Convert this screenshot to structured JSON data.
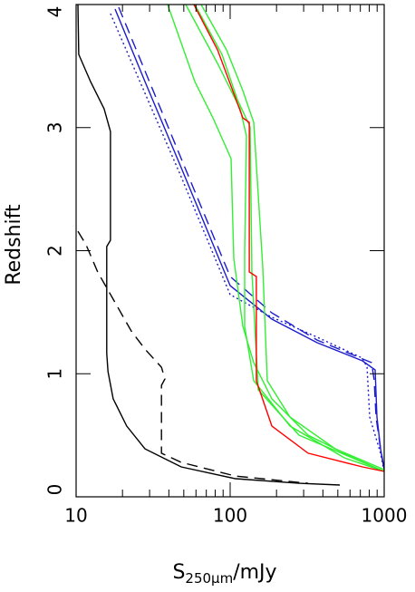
{
  "chart_data": {
    "type": "line",
    "xlabel": {
      "main": "S",
      "sub": "250μm",
      "rest": "/mJy"
    },
    "ylabel": "Redshift",
    "xlog": true,
    "xlim": [
      10,
      1000
    ],
    "ylim": [
      0,
      4
    ],
    "xticks": [
      10,
      100,
      1000
    ],
    "xminor": [
      20,
      30,
      40,
      50,
      60,
      70,
      80,
      90,
      200,
      300,
      400,
      500,
      600,
      700,
      800,
      900
    ],
    "yticks": [
      0,
      1,
      2,
      3,
      4
    ],
    "series": [
      {
        "color": "#000000",
        "dash": "solid",
        "x": [
          10.27,
          10.4,
          12.4,
          15.2,
          16.7,
          16.7,
          15.8,
          15.8,
          16.1,
          17.4,
          21.3,
          28.0,
          48.1,
          108,
          280,
          515
        ],
        "values": [
          4.0,
          3.595,
          3.374,
          3.153,
          2.969,
          2.085,
          2.033,
          1.164,
          1.017,
          0.796,
          0.575,
          0.39,
          0.243,
          0.147,
          0.11,
          0.096
        ]
      },
      {
        "color": "#000000",
        "dash": "dashed",
        "x": [
          10.27,
          11.6,
          13.8,
          17.4,
          22.8,
          28.0,
          35.8,
          37.7,
          35.8,
          35.8,
          48.1,
          108,
          320
        ],
        "values": [
          2.158,
          2.048,
          1.827,
          1.606,
          1.348,
          1.2,
          1.053,
          0.958,
          0.906,
          0.354,
          0.28,
          0.169,
          0.11
        ]
      },
      {
        "color": "#1c1ccc",
        "dash": "solid",
        "x": [
          17.9,
          28.0,
          48.1,
          100,
          186.5,
          367,
          722,
          873,
          897,
          947,
          1000
        ],
        "values": [
          3.963,
          3.374,
          2.674,
          1.716,
          1.444,
          1.252,
          1.105,
          1.031,
          0.648,
          0.39,
          0.221
        ]
      },
      {
        "color": "#1c1ccc",
        "dash": "dashed",
        "x": [
          18.9,
          48.1,
          100,
          186.5,
          367,
          828,
          861,
          885,
          947,
          1000
        ],
        "values": [
          3.978,
          2.748,
          1.79,
          1.495,
          1.274,
          1.09,
          0.943,
          0.648,
          0.39,
          0.221
        ]
      },
      {
        "color": "#1c1ccc",
        "dash": "dotted",
        "x": [
          16.7,
          48.1,
          100,
          186.5,
          367,
          722,
          774,
          805,
          947,
          1000
        ],
        "values": [
          3.926,
          2.6,
          1.643,
          1.459,
          1.297,
          1.127,
          1.053,
          0.648,
          0.354,
          0.206
        ]
      },
      {
        "color": "#33ee33",
        "dash": "solid",
        "x": [
          39.3,
          59.0,
          77.3,
          101.4,
          105.6,
          120.9,
          142.2,
          186.5,
          320.6,
          631,
          1000
        ],
        "values": [
          4.0,
          3.374,
          3.079,
          2.748,
          1.937,
          1.385,
          1.09,
          0.796,
          0.501,
          0.317,
          0.206
        ]
      },
      {
        "color": "#33ee33",
        "dash": "solid",
        "x": [
          51.5,
          82.8,
          116.1,
          127.6,
          124.2,
          124.2,
          142.2,
          244.5,
          551,
          1000
        ],
        "values": [
          4.0,
          3.521,
          3.153,
          2.932,
          1.974,
          1.385,
          0.943,
          0.575,
          0.317,
          0.206
        ]
      },
      {
        "color": "#33ee33",
        "dash": "solid",
        "x": [
          59.0,
          88.5,
          111.4,
          134.7,
          138.4,
          152.1,
          280,
          1000
        ],
        "values": [
          4.0,
          3.595,
          3.227,
          3.006,
          1.827,
          0.869,
          0.501,
          0.206
        ]
      },
      {
        "color": "#33ee33",
        "dash": "solid",
        "x": [
          64.8,
          94.7,
          120.9,
          142.2,
          162.9,
          174.2,
          244.5,
          481,
          1000
        ],
        "values": [
          4.0,
          3.632,
          3.3,
          3.042,
          1.864,
          0.943,
          0.648,
          0.39,
          0.221
        ]
      },
      {
        "color": "#ff0000",
        "dash": "solid",
        "x": [
          58.2,
          82.8,
          101.4,
          120.9,
          133,
          133,
          148,
          148,
          186.5,
          320.6,
          722,
          1000
        ],
        "values": [
          4.0,
          3.632,
          3.337,
          3.079,
          3.042,
          1.827,
          1.79,
          0.943,
          0.575,
          0.354,
          0.243,
          0.206
        ]
      }
    ]
  }
}
